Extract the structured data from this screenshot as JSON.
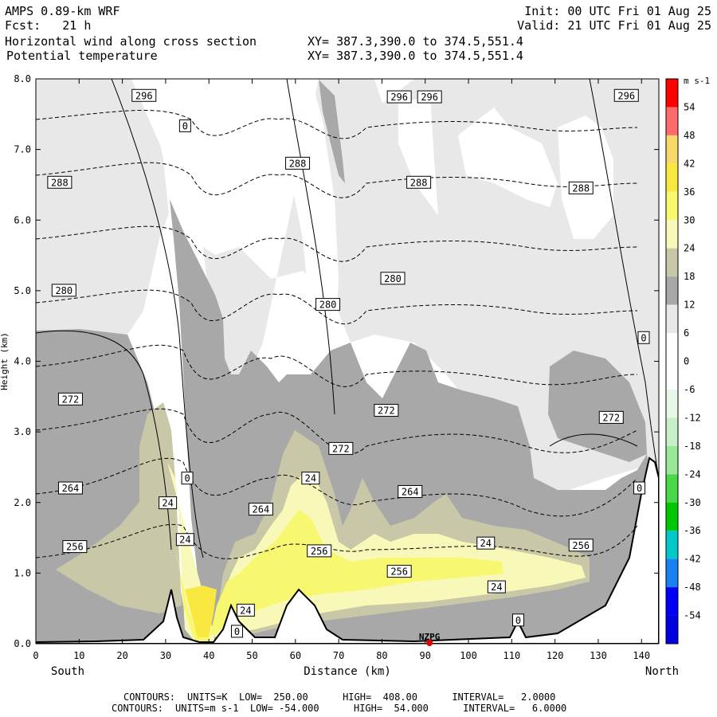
{
  "header": {
    "model": "AMPS 0.89-km WRF",
    "fcst": "Fcst:   21 h",
    "init": "Init: 00 UTC Fri 01 Aug 25",
    "valid": "Valid: 21 UTC Fri 01 Aug 25",
    "field1": "Horizontal wind along cross section",
    "xy1": "XY= 387.3,390.0 to 374.5,551.4",
    "field2": "Potential temperature",
    "xy2": "XY= 387.3,390.0 to 374.5,551.4"
  },
  "footer": {
    "line1_label": "CONTOURS:",
    "line1": "UNITS=K  LOW=  250.00      HIGH=  408.00      INTERVAL=   2.0000",
    "line2_label": "CONTOURS:",
    "line2": "UNITS=m s-1  LOW= -54.000      HIGH=  54.000      INTERVAL=   6.0000"
  },
  "chart_data": {
    "type": "contour cross-section",
    "xlabel": "Distance (km)",
    "x_left_label": "South",
    "x_right_label": "North",
    "ylabel": "Height (km)",
    "xlim": [
      0,
      144
    ],
    "ylim": [
      0,
      8
    ],
    "x_ticks": [
      0,
      10,
      20,
      30,
      40,
      50,
      60,
      70,
      80,
      90,
      100,
      110,
      120,
      130,
      140
    ],
    "y_ticks": [
      "0.0",
      "1.0",
      "2.0",
      "3.0",
      "4.0",
      "5.0",
      "6.0",
      "7.0",
      "8.0"
    ],
    "station": {
      "label": "NZPG",
      "x": 91,
      "color": "#e00000"
    },
    "colorbar": {
      "units": "m s-1",
      "levels": [
        54,
        48,
        42,
        36,
        30,
        24,
        18,
        12,
        6,
        0,
        -6,
        -12,
        -18,
        -24,
        -30,
        -36,
        -42,
        -48,
        -54
      ],
      "colors": [
        "#ff0000",
        "#ff6b6b",
        "#f8d868",
        "#f8e840",
        "#f8f870",
        "#f8f8b8",
        "#c8c8a8",
        "#a8a8a8",
        "#e8e8e8",
        "#ffffff",
        "#ffffff",
        "#e8f8e8",
        "#c8f0c8",
        "#98e898",
        "#48d848",
        "#00c800",
        "#00c8c8",
        "#1880f0",
        "#0000f8",
        "#0000e0"
      ]
    },
    "theta_labels": [
      {
        "text": "296",
        "x": 25,
        "y": 7.76
      },
      {
        "text": "296",
        "x": 84,
        "y": 7.74
      },
      {
        "text": "296",
        "x": 91,
        "y": 7.74
      },
      {
        "text": "296",
        "x": 136.5,
        "y": 7.76
      },
      {
        "text": "288",
        "x": 5.5,
        "y": 6.53
      },
      {
        "text": "288",
        "x": 60.5,
        "y": 6.8
      },
      {
        "text": "288",
        "x": 88.5,
        "y": 6.53
      },
      {
        "text": "288",
        "x": 126,
        "y": 6.45
      },
      {
        "text": "280",
        "x": 6.5,
        "y": 5.0
      },
      {
        "text": "280",
        "x": 82.5,
        "y": 5.17
      },
      {
        "text": "280",
        "x": 67.5,
        "y": 4.8
      },
      {
        "text": "272",
        "x": 8,
        "y": 3.46
      },
      {
        "text": "272",
        "x": 81,
        "y": 3.3
      },
      {
        "text": "272",
        "x": 70.5,
        "y": 2.76
      },
      {
        "text": "272",
        "x": 133,
        "y": 3.2
      },
      {
        "text": "264",
        "x": 8,
        "y": 2.2
      },
      {
        "text": "264",
        "x": 52,
        "y": 1.9
      },
      {
        "text": "264",
        "x": 86.5,
        "y": 2.15
      },
      {
        "text": "256",
        "x": 9,
        "y": 1.37
      },
      {
        "text": "256",
        "x": 65.5,
        "y": 1.31
      },
      {
        "text": "256",
        "x": 84,
        "y": 1.02
      },
      {
        "text": "256",
        "x": 126,
        "y": 1.39
      }
    ],
    "wind_labels": [
      {
        "text": "0",
        "x": 34.5,
        "y": 7.33
      },
      {
        "text": "0",
        "x": 140.5,
        "y": 4.33
      },
      {
        "text": "0",
        "x": 35,
        "y": 2.34
      },
      {
        "text": "0",
        "x": 139.5,
        "y": 2.2
      },
      {
        "text": "0",
        "x": 46.5,
        "y": 0.17
      },
      {
        "text": "0",
        "x": 111.5,
        "y": 0.33
      },
      {
        "text": "24",
        "x": 30.5,
        "y": 1.99
      },
      {
        "text": "24",
        "x": 63.5,
        "y": 2.34
      },
      {
        "text": "24",
        "x": 34.5,
        "y": 1.47
      },
      {
        "text": "24",
        "x": 104,
        "y": 1.42
      },
      {
        "text": "24",
        "x": 106.5,
        "y": 0.8
      },
      {
        "text": "24",
        "x": 48.5,
        "y": 0.47
      }
    ]
  }
}
